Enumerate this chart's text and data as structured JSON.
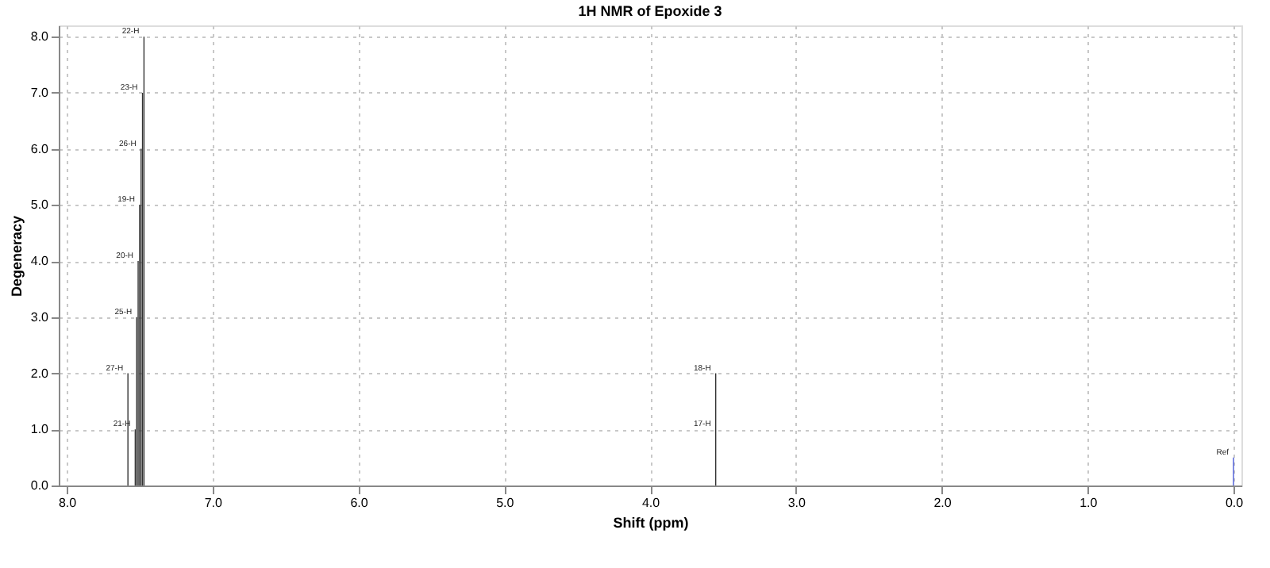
{
  "chart_data": {
    "type": "bar",
    "title": "1H NMR of Epoxide 3",
    "xlabel": "Shift (ppm)",
    "ylabel": "Degeneracy",
    "x": [
      7.58,
      7.53,
      7.52,
      7.51,
      7.5,
      7.49,
      7.48,
      7.47,
      3.55
    ],
    "series": [
      {
        "color": "#333333",
        "values": [
          2,
          1,
          3,
          4,
          5,
          6,
          7,
          8,
          2
        ]
      },
      {
        "color": "#4a5ad8",
        "x": [
          0.0
        ],
        "values": [
          0.5
        ]
      }
    ],
    "xlim": [
      8.0,
      0.0
    ],
    "xticks": [
      {
        "value": 8,
        "label": "8.0"
      },
      {
        "value": 7,
        "label": "7.0"
      },
      {
        "value": 6,
        "label": "6.0"
      },
      {
        "value": 5,
        "label": "5.0"
      },
      {
        "value": 4,
        "label": "4.0"
      },
      {
        "value": 3,
        "label": "3.0"
      },
      {
        "value": 2,
        "label": "2.0"
      },
      {
        "value": 1,
        "label": "1.0"
      },
      {
        "value": 0,
        "label": "0.0"
      }
    ],
    "ylim": [
      0,
      8.2
    ],
    "yticks": [
      {
        "value": 0,
        "label": "0.0"
      },
      {
        "value": 1,
        "label": "1.0"
      },
      {
        "value": 2,
        "label": "2.0"
      },
      {
        "value": 3,
        "label": "3.0"
      },
      {
        "value": 4,
        "label": "4.0"
      },
      {
        "value": 5,
        "label": "5.0"
      },
      {
        "value": 6,
        "label": "6.0"
      },
      {
        "value": 7,
        "label": "7.0"
      },
      {
        "value": 8,
        "label": "8.0"
      }
    ],
    "annotations": [
      {
        "text": "22-H",
        "x": 7.47,
        "y": 8
      },
      {
        "text": "23-H",
        "x": 7.48,
        "y": 7
      },
      {
        "text": "26-H",
        "x": 7.49,
        "y": 6
      },
      {
        "text": "19-H",
        "x": 7.5,
        "y": 5
      },
      {
        "text": "20-H",
        "x": 7.51,
        "y": 4
      },
      {
        "text": "25-H",
        "x": 7.52,
        "y": 3
      },
      {
        "text": "27-H",
        "x": 7.58,
        "y": 2
      },
      {
        "text": "21-H",
        "x": 7.53,
        "y": 1
      },
      {
        "text": "18-H",
        "x": 3.55,
        "y": 2
      },
      {
        "text": "17-H",
        "x": 3.55,
        "y": 1
      },
      {
        "text": "Ref",
        "x": 0.0,
        "y": 0.5
      }
    ],
    "grid": true
  }
}
